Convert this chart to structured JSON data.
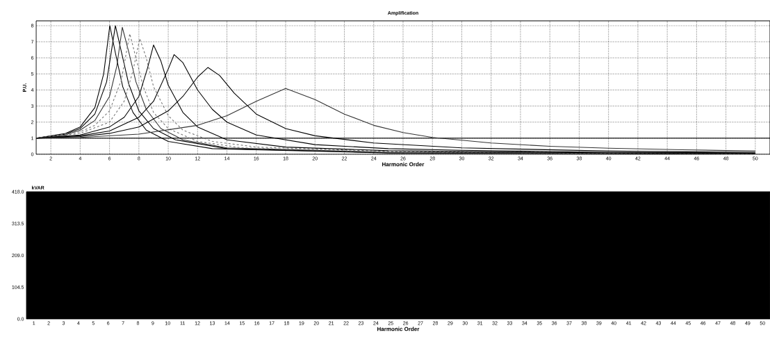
{
  "chart_data": [
    {
      "type": "line",
      "title": "Amplification",
      "xlabel": "Harmonic Order",
      "ylabel": "P.U.",
      "xlim": [
        1,
        51
      ],
      "ylim": [
        0,
        8.3
      ],
      "xticks": [
        2,
        4,
        6,
        8,
        10,
        12,
        14,
        16,
        18,
        20,
        22,
        24,
        26,
        28,
        30,
        32,
        34,
        36,
        38,
        40,
        42,
        44,
        46,
        48,
        50
      ],
      "yticks": [
        0,
        1,
        2,
        3,
        4,
        5,
        6,
        7,
        8
      ],
      "grid": true,
      "series": [
        {
          "color": "#000000",
          "x": [
            1,
            3,
            4,
            5,
            5.6,
            6.02,
            6.4,
            6.9,
            7.6,
            8.5,
            10,
            13,
            25,
            50
          ],
          "values": [
            1,
            1.3,
            1.7,
            2.9,
            5.0,
            8.0,
            6.3,
            4.2,
            2.6,
            1.5,
            0.8,
            0.35,
            0.08,
            0.02
          ]
        },
        {
          "color": "#000000",
          "x": [
            1,
            3,
            4,
            5,
            5.8,
            6.4,
            6.8,
            7.3,
            8,
            9,
            10.5,
            14,
            25,
            50
          ],
          "values": [
            1,
            1.25,
            1.6,
            2.5,
            4.5,
            8.0,
            6.4,
            4.4,
            2.7,
            1.6,
            0.9,
            0.35,
            0.1,
            0.03
          ]
        },
        {
          "color": "#333333",
          "x": [
            1,
            3,
            4,
            5,
            6,
            6.5,
            6.87,
            7.3,
            7.8,
            8.5,
            9.5,
            11,
            14,
            25,
            50
          ],
          "values": [
            1,
            1.2,
            1.5,
            2.1,
            3.6,
            5.5,
            7.9,
            6.4,
            4.5,
            2.8,
            1.6,
            0.9,
            0.4,
            0.12,
            0.03
          ]
        },
        {
          "color": "#777777",
          "line_style": "dashed",
          "x": [
            1,
            4,
            5,
            6,
            6.8,
            7.38,
            7.8,
            8.3,
            9,
            10,
            12,
            15,
            25,
            50
          ],
          "values": [
            1,
            1.4,
            1.8,
            2.7,
            4.6,
            7.5,
            6.0,
            4.2,
            2.6,
            1.6,
            0.8,
            0.4,
            0.14,
            0.04
          ]
        },
        {
          "color": "#777777",
          "line_style": "dashed",
          "x": [
            1,
            4,
            6,
            7,
            7.6,
            8.06,
            8.5,
            9,
            10,
            11,
            13,
            16,
            25,
            50
          ],
          "values": [
            1,
            1.3,
            2.0,
            3.3,
            5.2,
            7.2,
            6.0,
            4.2,
            2.4,
            1.5,
            0.8,
            0.45,
            0.18,
            0.05
          ]
        },
        {
          "color": "#000000",
          "x": [
            1,
            4,
            6,
            7,
            8,
            8.6,
            9.0,
            9.5,
            10,
            11,
            12,
            14,
            18,
            25,
            35,
            50
          ],
          "values": [
            1,
            1.2,
            1.7,
            2.3,
            3.6,
            5.4,
            6.8,
            5.8,
            4.3,
            2.6,
            1.7,
            0.9,
            0.45,
            0.22,
            0.12,
            0.06
          ]
        },
        {
          "color": "#000000",
          "x": [
            1,
            4,
            6,
            8,
            9,
            10,
            10.4,
            11,
            12,
            13,
            14,
            16,
            20,
            25,
            30,
            40,
            50
          ],
          "values": [
            1,
            1.15,
            1.45,
            2.3,
            3.3,
            5.3,
            6.2,
            5.7,
            4.0,
            2.8,
            2.0,
            1.2,
            0.6,
            0.35,
            0.25,
            0.12,
            0.08
          ]
        },
        {
          "color": "#000000",
          "x": [
            1,
            4,
            6,
            8,
            10,
            11,
            12,
            12.7,
            13.5,
            14.5,
            16,
            18,
            20,
            24,
            30,
            40,
            50
          ],
          "values": [
            1,
            1.1,
            1.3,
            1.7,
            2.7,
            3.6,
            4.8,
            5.4,
            4.9,
            3.8,
            2.5,
            1.6,
            1.15,
            0.7,
            0.4,
            0.2,
            0.12
          ]
        },
        {
          "color": "#333333",
          "x": [
            1,
            4,
            8,
            12,
            14,
            16,
            18,
            20,
            22,
            24,
            26,
            28,
            32,
            36,
            40,
            45,
            50
          ],
          "values": [
            1,
            1.05,
            1.25,
            1.8,
            2.4,
            3.3,
            4.1,
            3.4,
            2.5,
            1.8,
            1.35,
            1.05,
            0.7,
            0.5,
            0.38,
            0.28,
            0.2
          ]
        }
      ],
      "ref_lines": [
        {
          "axis": "y",
          "value": 1,
          "color": "#000000"
        }
      ]
    },
    {
      "type": "bar",
      "xlabel": "Harmonic Order",
      "ylabel": "kVAR",
      "ylim": [
        0,
        418
      ],
      "yticks": [
        {
          "value": 0,
          "label": "0.0"
        },
        {
          "value": 104.5,
          "label": "104.5"
        },
        {
          "value": 209,
          "label": "209.0"
        },
        {
          "value": 313.5,
          "label": "313.5"
        },
        {
          "value": 418,
          "label": "418.0"
        }
      ],
      "categories": [
        "1",
        "2",
        "3",
        "4",
        "5",
        "6",
        "7",
        "8",
        "9",
        "10",
        "11",
        "12",
        "13",
        "14",
        "15",
        "16",
        "17",
        "18",
        "19",
        "20",
        "21",
        "22",
        "23",
        "24",
        "25",
        "26",
        "27",
        "28",
        "29",
        "30",
        "31",
        "32",
        "33",
        "34",
        "35",
        "36",
        "37",
        "38",
        "39",
        "40",
        "41",
        "42",
        "43",
        "44",
        "45",
        "46",
        "47",
        "48",
        "49",
        "50"
      ],
      "bands": [
        {
          "axis": "y",
          "from": 0,
          "to": 418,
          "color": "#000000"
        }
      ]
    }
  ]
}
